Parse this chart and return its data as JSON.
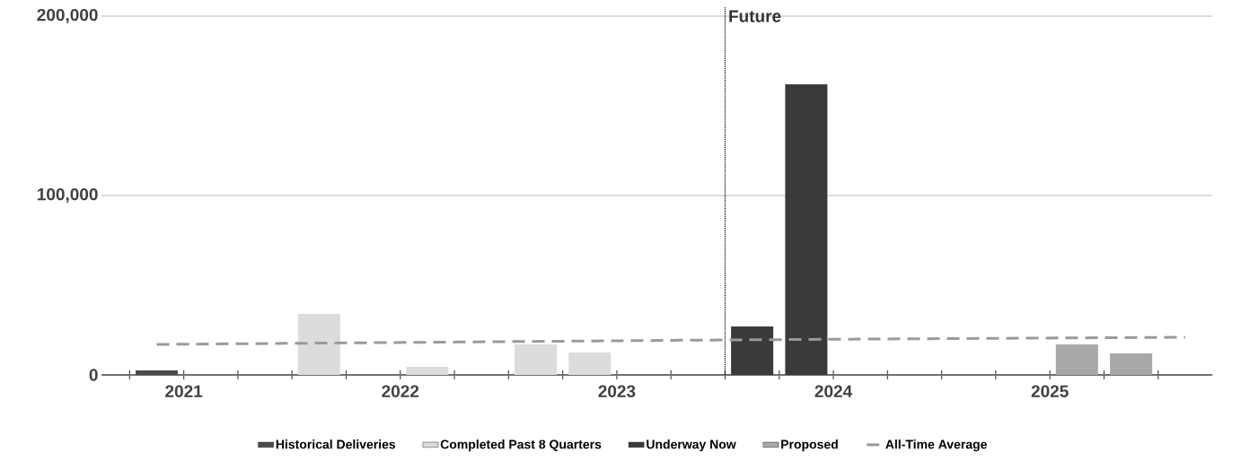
{
  "chart_data": {
    "type": "bar",
    "series": [
      {
        "name": "Historical Deliveries",
        "color": "#4a4a4a",
        "x": [
          2021.375
        ],
        "values": [
          2500
        ]
      },
      {
        "name": "Completed Past 8 Quarters",
        "color": "#dcdcdc",
        "x": [
          2022.125,
          2022.625,
          2023.125,
          2023.375
        ],
        "values": [
          34000,
          4500,
          17000,
          12500
        ]
      },
      {
        "name": "Underway Now",
        "color": "#3a3a3a",
        "x": [
          2024.125,
          2024.375
        ],
        "values": [
          27000,
          162000
        ]
      },
      {
        "name": "Proposed",
        "color": "#a8a8a8",
        "x": [
          2025.625,
          2025.875
        ],
        "values": [
          17000,
          12000
        ]
      },
      {
        "name": "All-Time Average",
        "type": "line",
        "line_style": "dashed",
        "color": "#9a9a9a",
        "x": [
          2021.375,
          2024.0,
          2026.125
        ],
        "values": [
          17000,
          19500,
          21000
        ]
      }
    ],
    "xlim": [
      2021.12,
      2026.25
    ],
    "xticks": [
      {
        "value": 2021.5,
        "label": "2021"
      },
      {
        "value": 2022.5,
        "label": "2022"
      },
      {
        "value": 2023.5,
        "label": "2023"
      },
      {
        "value": 2024.5,
        "label": "2024"
      },
      {
        "value": 2025.5,
        "label": "2025"
      },
      {
        "value": 2022,
        "label": null
      },
      {
        "value": 2023,
        "label": null
      },
      {
        "value": 2024,
        "label": null
      },
      {
        "value": 2025,
        "label": null
      },
      {
        "value": 2026,
        "label": null
      },
      {
        "value": 2021.25,
        "label": null
      },
      {
        "value": 2021.5,
        "label": null
      },
      {
        "value": 2021.75,
        "label": null
      },
      {
        "value": 2022.25,
        "label": null
      },
      {
        "value": 2022.5,
        "label": null
      },
      {
        "value": 2022.75,
        "label": null
      },
      {
        "value": 2023.25,
        "label": null
      },
      {
        "value": 2023.5,
        "label": null
      },
      {
        "value": 2023.75,
        "label": null
      },
      {
        "value": 2024.25,
        "label": null
      },
      {
        "value": 2024.5,
        "label": null
      },
      {
        "value": 2024.75,
        "label": null
      },
      {
        "value": 2025.25,
        "label": null
      },
      {
        "value": 2025.5,
        "label": null
      },
      {
        "value": 2025.75,
        "label": null
      }
    ],
    "ylim": [
      0,
      205000
    ],
    "yticks": [
      {
        "value": 0,
        "label": "0"
      },
      {
        "value": 100000,
        "label": "100,000"
      },
      {
        "value": 200000,
        "label": "200,000"
      }
    ],
    "grid": "y",
    "legend": "bottom",
    "ref_lines": [
      {
        "axis": "x",
        "value": 2024,
        "label": "Future",
        "color": "#000000",
        "line_style": "dotted"
      }
    ]
  }
}
